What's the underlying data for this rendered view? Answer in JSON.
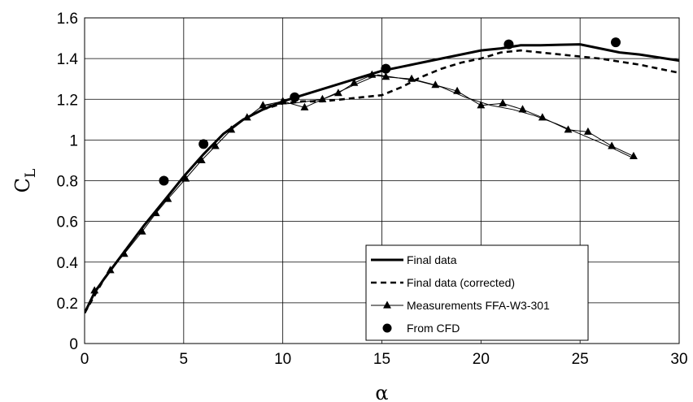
{
  "chart_data": {
    "type": "line",
    "title": "",
    "xlabel": "α",
    "ylabel": "C",
    "ylabel_subscript": "L",
    "xlim": [
      0,
      30
    ],
    "ylim": [
      0,
      1.6
    ],
    "xticks": [
      0,
      5,
      10,
      15,
      20,
      25,
      30
    ],
    "yticks": [
      0,
      0.2,
      0.4,
      0.6,
      0.8,
      1,
      1.2,
      1.4,
      1.6
    ],
    "xtick_labels": [
      "0",
      "5",
      "10",
      "15",
      "20",
      "25",
      "30"
    ],
    "ytick_labels": [
      "0",
      "0.2",
      "0.4",
      "0.6",
      "0.8",
      "1",
      "1.2",
      "1.4",
      "1.6"
    ],
    "grid": true,
    "legend_position": "bottom-center",
    "series": [
      {
        "name": "Final data",
        "style": "solid-thick",
        "color": "#000000",
        "x": [
          0,
          0.5,
          1,
          2,
          3,
          4,
          5,
          6,
          7,
          8,
          9,
          10,
          11,
          12,
          13,
          14,
          15,
          16,
          17,
          18,
          19,
          20,
          21,
          22,
          23,
          24,
          25,
          26,
          27,
          28,
          29,
          30
        ],
        "y": [
          0.15,
          0.25,
          0.32,
          0.45,
          0.58,
          0.7,
          0.82,
          0.93,
          1.03,
          1.1,
          1.15,
          1.19,
          1.22,
          1.25,
          1.28,
          1.31,
          1.34,
          1.36,
          1.38,
          1.4,
          1.42,
          1.44,
          1.45,
          1.465,
          1.465,
          1.468,
          1.47,
          1.45,
          1.43,
          1.42,
          1.405,
          1.39
        ]
      },
      {
        "name": "Final data (corrected)",
        "style": "dashed",
        "color": "#000000",
        "x": [
          0,
          1,
          2,
          3,
          4,
          5,
          6,
          7,
          8,
          9,
          10,
          11,
          12,
          13,
          14,
          15,
          16,
          17,
          18,
          19,
          20,
          21,
          22,
          23,
          24,
          25,
          26,
          27,
          28,
          29,
          30
        ],
        "y": [
          0.15,
          0.32,
          0.45,
          0.58,
          0.7,
          0.82,
          0.93,
          1.03,
          1.1,
          1.15,
          1.18,
          1.19,
          1.19,
          1.2,
          1.21,
          1.22,
          1.26,
          1.31,
          1.35,
          1.38,
          1.4,
          1.43,
          1.44,
          1.43,
          1.42,
          1.41,
          1.4,
          1.385,
          1.37,
          1.35,
          1.33
        ]
      },
      {
        "name": "Measurements FFA-W3-301",
        "style": "thin-triangle",
        "color": "#000000",
        "x": [
          0.5,
          1.3,
          2.0,
          2.9,
          3.6,
          4.2,
          5.1,
          5.9,
          6.6,
          7.4,
          8.2,
          9.0,
          10.0,
          11.1,
          12.0,
          12.8,
          13.6,
          14.5,
          15.2,
          16.5,
          17.7,
          18.8,
          20.0,
          21.1,
          22.1,
          23.1,
          24.4,
          25.4,
          26.6,
          27.7
        ],
        "y": [
          0.26,
          0.36,
          0.44,
          0.55,
          0.64,
          0.71,
          0.81,
          0.9,
          0.97,
          1.05,
          1.11,
          1.17,
          1.19,
          1.16,
          1.2,
          1.23,
          1.28,
          1.32,
          1.31,
          1.3,
          1.27,
          1.24,
          1.17,
          1.18,
          1.15,
          1.11,
          1.05,
          1.04,
          0.97,
          0.92
        ]
      },
      {
        "name": "From CFD",
        "style": "markers-circle",
        "color": "#000000",
        "x": [
          4.0,
          6.0,
          10.6,
          15.2,
          21.4,
          26.8
        ],
        "y": [
          0.8,
          0.98,
          1.21,
          1.35,
          1.47,
          1.48
        ]
      }
    ],
    "extra_lines": [
      {
        "note": "second thin measurement trace",
        "x": [
          9.0,
          10.5,
          12.0,
          13.6,
          14.8,
          15.5,
          16.8,
          18.0,
          19.2,
          20.5,
          21.6,
          22.7,
          23.8,
          25.0,
          26.2,
          27.7
        ],
        "y": [
          1.17,
          1.18,
          1.2,
          1.27,
          1.32,
          1.31,
          1.29,
          1.26,
          1.21,
          1.17,
          1.15,
          1.12,
          1.08,
          1.03,
          0.98,
          0.91
        ]
      }
    ]
  }
}
